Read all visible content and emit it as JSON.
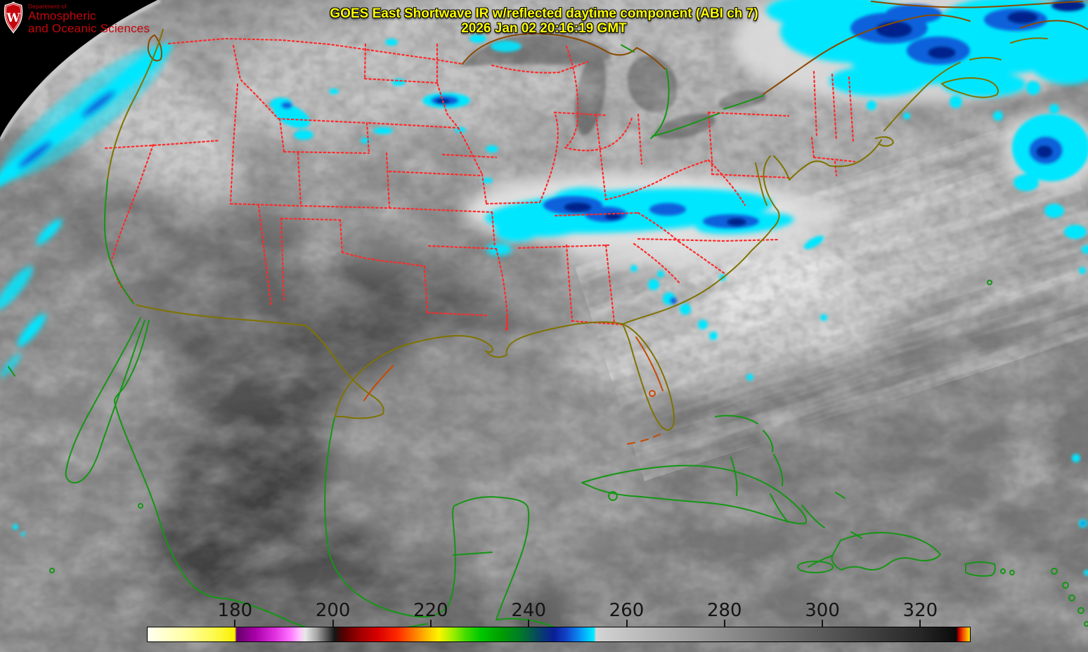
{
  "header": {
    "title_line1": "GOES East Shortwave IR w/reflected daytime component (ABI ch 7)",
    "title_line2": "2026 Jan 02 20:16:19 GMT",
    "title_color": "#ffff00"
  },
  "logo": {
    "department_prefix": "Department of",
    "department_line1": "Atmospheric",
    "department_line2": "and Oceanic Sciences",
    "crest_letter": "W",
    "brand_color": "#c5050c"
  },
  "colorbar": {
    "min": 162,
    "max": 330,
    "tick_values": [
      180,
      200,
      220,
      240,
      260,
      280,
      300,
      320
    ],
    "tick_labels": [
      "180",
      "200",
      "220",
      "240",
      "260",
      "280",
      "300",
      "320"
    ],
    "label_color": "#141414",
    "stops": [
      [
        162,
        "#fffff2"
      ],
      [
        170,
        "#ffffa0"
      ],
      [
        176,
        "#fdf948"
      ],
      [
        179.8,
        "#f8f000"
      ],
      [
        180.2,
        "#66006a"
      ],
      [
        184,
        "#a800a8"
      ],
      [
        188,
        "#e030e0"
      ],
      [
        191,
        "#ff70ff"
      ],
      [
        193,
        "#ffc0ff"
      ],
      [
        194.2,
        "#e8e8e8"
      ],
      [
        196.5,
        "#a8a8a8"
      ],
      [
        198.5,
        "#585858"
      ],
      [
        200.2,
        "#151515"
      ],
      [
        202,
        "#550000"
      ],
      [
        205,
        "#990000"
      ],
      [
        209,
        "#d80000"
      ],
      [
        213,
        "#ff2800"
      ],
      [
        216.5,
        "#ff7c00"
      ],
      [
        219.5,
        "#ffc800"
      ],
      [
        221.5,
        "#fdf500"
      ],
      [
        224,
        "#aaf000"
      ],
      [
        227,
        "#44dc00"
      ],
      [
        230,
        "#00c800"
      ],
      [
        234,
        "#00a000"
      ],
      [
        238,
        "#007c28"
      ],
      [
        240,
        "#046044"
      ],
      [
        242.5,
        "#093a70"
      ],
      [
        245,
        "#0a1e96"
      ],
      [
        247.5,
        "#1242c8"
      ],
      [
        250,
        "#0a86f0"
      ],
      [
        252,
        "#00c8ff"
      ],
      [
        253.2,
        "#00eeff"
      ],
      [
        253.6,
        "#d4d4d4"
      ],
      [
        260,
        "#c2c2c2"
      ],
      [
        280,
        "#8e8e8e"
      ],
      [
        300,
        "#5a5a5a"
      ],
      [
        320,
        "#262626"
      ],
      [
        327.2,
        "#0a0a0a"
      ],
      [
        327.8,
        "#c80000"
      ],
      [
        328.6,
        "#f05000"
      ],
      [
        329.3,
        "#ff9800"
      ],
      [
        330,
        "#ffe600"
      ]
    ]
  },
  "map": {
    "colors": {
      "base": "#7c7c7c",
      "space": "#000000",
      "state": "#ff2a2a",
      "green": "#149614",
      "olive": "#7f7300",
      "brown": "#8a4a00",
      "orange": "#c84a00",
      "cyan": "#00e6ff",
      "blue": "#0a62dc",
      "deep": "#04228c",
      "cloud_white": "#e6e6e6",
      "land_dark": "#474747"
    },
    "features_visible": [
      "United States state boundaries",
      "US-Canada border",
      "US-Mexico border",
      "Great Lakes",
      "Florida",
      "Baja California",
      "Yucatan Peninsula",
      "Cuba",
      "Bahamas",
      "Hispaniola",
      "Puerto Rico",
      "Gulf of Mexico",
      "Atlantic Ocean",
      "Pacific Ocean",
      "Earth limb / space"
    ]
  }
}
